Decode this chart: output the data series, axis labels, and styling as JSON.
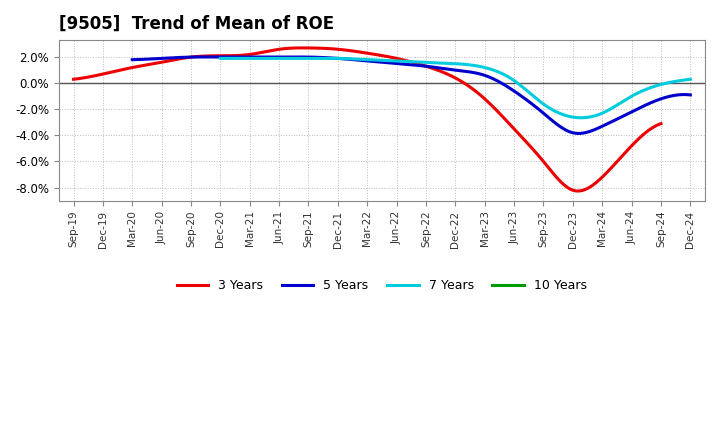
{
  "title": "[9505]  Trend of Mean of ROE",
  "title_fontsize": 12,
  "background_color": "#ffffff",
  "plot_bg_color": "#ffffff",
  "grid_color": "#bbbbbb",
  "x_labels": [
    "Sep-19",
    "Dec-19",
    "Mar-20",
    "Jun-20",
    "Sep-20",
    "Dec-20",
    "Mar-21",
    "Jun-21",
    "Sep-21",
    "Dec-21",
    "Mar-22",
    "Jun-22",
    "Sep-22",
    "Dec-22",
    "Mar-23",
    "Jun-23",
    "Sep-23",
    "Dec-23",
    "Mar-24",
    "Jun-24",
    "Sep-24",
    "Dec-24"
  ],
  "series": {
    "3 Years": {
      "color": "#ee0000",
      "values": [
        0.003,
        0.007,
        0.012,
        0.016,
        0.02,
        0.021,
        0.022,
        0.026,
        0.027,
        0.026,
        0.023,
        0.019,
        0.013,
        0.004,
        -0.012,
        -0.035,
        -0.06,
        -0.082,
        -0.072,
        -0.048,
        -0.031,
        null
      ]
    },
    "5 Years": {
      "color": "#0000cc",
      "values": [
        null,
        null,
        0.018,
        0.019,
        0.02,
        0.02,
        0.02,
        0.02,
        0.02,
        0.019,
        0.017,
        0.015,
        0.013,
        0.01,
        0.006,
        -0.006,
        -0.023,
        -0.038,
        -0.033,
        -0.022,
        -0.012,
        -0.009
      ]
    },
    "7 Years": {
      "color": "#00ccdd",
      "values": [
        null,
        null,
        null,
        null,
        null,
        0.019,
        0.019,
        0.019,
        0.019,
        0.019,
        0.018,
        0.017,
        0.016,
        0.015,
        0.012,
        0.002,
        -0.016,
        -0.026,
        -0.023,
        -0.01,
        -0.001,
        0.003
      ]
    },
    "10 Years": {
      "color": "#009900",
      "values": [
        null,
        null,
        null,
        null,
        null,
        null,
        null,
        null,
        null,
        null,
        null,
        null,
        null,
        null,
        null,
        null,
        null,
        null,
        null,
        null,
        null,
        null
      ]
    }
  },
  "ylim": [
    -0.09,
    0.033
  ],
  "yticks": [
    -0.08,
    -0.06,
    -0.04,
    -0.02,
    0.0,
    0.02
  ],
  "figsize": [
    7.2,
    4.4
  ],
  "dpi": 100
}
